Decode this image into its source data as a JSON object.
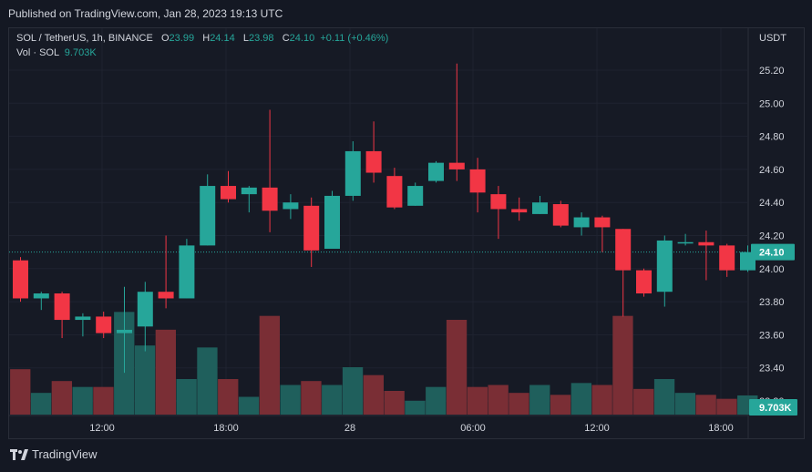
{
  "header": {
    "published": "Published on TradingView.com, Jan 28, 2023 19:13 UTC"
  },
  "legend": {
    "symbol": "SOL / TetherUS, 1h, BINANCE",
    "o_label": "O",
    "o_val": "23.99",
    "h_label": "H",
    "h_val": "24.14",
    "l_label": "L",
    "l_val": "23.98",
    "c_label": "C",
    "c_val": "24.10",
    "change": "+0.11 (+0.46%)",
    "vol_label": "Vol · SOL",
    "vol_val": "9.703K"
  },
  "footer": {
    "brand": "TradingView"
  },
  "colors": {
    "up": "#26a69a",
    "down": "#f23645",
    "up_vol": "#1f5f5c",
    "down_vol": "#7a2e35",
    "bg": "#161a25"
  },
  "chart_data": {
    "type": "candlestick",
    "currency_label": "USDT",
    "ylim": [
      23.2,
      25.3
    ],
    "y_ticks": [
      "25.20",
      "25.00",
      "24.80",
      "24.60",
      "24.40",
      "24.20",
      "24.00",
      "23.80",
      "23.60",
      "23.40",
      "23.20"
    ],
    "x_ticks": [
      "12:00",
      "18:00",
      "28",
      "06:00",
      "12:00",
      "18:00"
    ],
    "last_price": "24.10",
    "last_volume": "9.703K",
    "candles": [
      {
        "o": 24.05,
        "h": 24.07,
        "l": 23.8,
        "c": 23.82
      },
      {
        "o": 23.82,
        "h": 23.86,
        "l": 23.75,
        "c": 23.85
      },
      {
        "o": 23.85,
        "h": 23.86,
        "l": 23.58,
        "c": 23.69
      },
      {
        "o": 23.69,
        "h": 23.73,
        "l": 23.59,
        "c": 23.71
      },
      {
        "o": 23.71,
        "h": 23.74,
        "l": 23.58,
        "c": 23.61
      },
      {
        "o": 23.61,
        "h": 23.89,
        "l": 23.37,
        "c": 23.63
      },
      {
        "o": 23.65,
        "h": 23.92,
        "l": 23.5,
        "c": 23.86
      },
      {
        "o": 23.86,
        "h": 24.2,
        "l": 23.76,
        "c": 23.82
      },
      {
        "o": 23.82,
        "h": 24.18,
        "l": 23.82,
        "c": 24.14
      },
      {
        "o": 24.14,
        "h": 24.57,
        "l": 24.14,
        "c": 24.5
      },
      {
        "o": 24.5,
        "h": 24.59,
        "l": 24.4,
        "c": 24.42
      },
      {
        "o": 24.45,
        "h": 24.5,
        "l": 24.34,
        "c": 24.49
      },
      {
        "o": 24.49,
        "h": 24.96,
        "l": 24.22,
        "c": 24.35
      },
      {
        "o": 24.36,
        "h": 24.45,
        "l": 24.3,
        "c": 24.4
      },
      {
        "o": 24.38,
        "h": 24.43,
        "l": 24.01,
        "c": 24.11
      },
      {
        "o": 24.12,
        "h": 24.47,
        "l": 24.12,
        "c": 24.44
      },
      {
        "o": 24.44,
        "h": 24.77,
        "l": 24.41,
        "c": 24.71
      },
      {
        "o": 24.71,
        "h": 24.89,
        "l": 24.52,
        "c": 24.58
      },
      {
        "o": 24.56,
        "h": 24.61,
        "l": 24.36,
        "c": 24.37
      },
      {
        "o": 24.38,
        "h": 24.52,
        "l": 24.38,
        "c": 24.5
      },
      {
        "o": 24.53,
        "h": 24.65,
        "l": 24.52,
        "c": 24.64
      },
      {
        "o": 24.64,
        "h": 25.24,
        "l": 24.53,
        "c": 24.6
      },
      {
        "o": 24.6,
        "h": 24.67,
        "l": 24.34,
        "c": 24.46
      },
      {
        "o": 24.45,
        "h": 24.5,
        "l": 24.18,
        "c": 24.36
      },
      {
        "o": 24.36,
        "h": 24.43,
        "l": 24.29,
        "c": 24.34
      },
      {
        "o": 24.33,
        "h": 24.44,
        "l": 24.33,
        "c": 24.4
      },
      {
        "o": 24.39,
        "h": 24.41,
        "l": 24.25,
        "c": 24.26
      },
      {
        "o": 24.25,
        "h": 24.34,
        "l": 24.2,
        "c": 24.31
      },
      {
        "o": 24.31,
        "h": 24.32,
        "l": 24.1,
        "c": 24.25
      },
      {
        "o": 24.24,
        "h": 24.24,
        "l": 23.71,
        "c": 23.99
      },
      {
        "o": 23.99,
        "h": 24.0,
        "l": 23.83,
        "c": 23.85
      },
      {
        "o": 23.86,
        "h": 24.2,
        "l": 23.77,
        "c": 24.17
      },
      {
        "o": 24.16,
        "h": 24.21,
        "l": 24.14,
        "c": 24.16
      },
      {
        "o": 24.16,
        "h": 24.23,
        "l": 23.93,
        "c": 24.14
      },
      {
        "o": 24.14,
        "h": 24.15,
        "l": 23.95,
        "c": 23.99
      },
      {
        "o": 23.99,
        "h": 24.14,
        "l": 23.98,
        "c": 24.1
      }
    ],
    "volumes_k": [
      23.0,
      11.0,
      17.0,
      14.0,
      14.0,
      52.0,
      35.0,
      43.0,
      18.0,
      34.0,
      18.0,
      9.0,
      50.0,
      15.0,
      17.0,
      15.0,
      24.0,
      20.0,
      12.0,
      7.0,
      14.0,
      48.0,
      14.0,
      15.0,
      11.0,
      15.0,
      10.0,
      16.0,
      15.0,
      50.0,
      13.0,
      18.0,
      11.0,
      10.0,
      8.0,
      9.7
    ],
    "volume_max_k": 60
  }
}
